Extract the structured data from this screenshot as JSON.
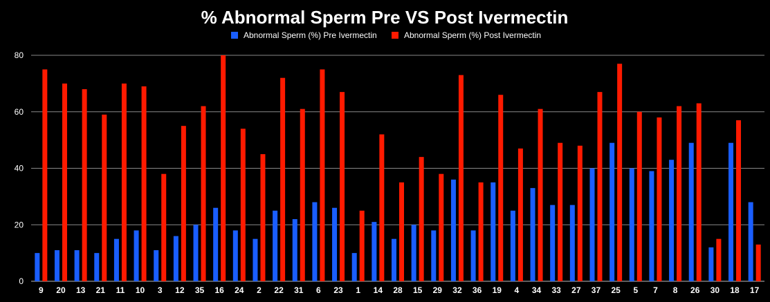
{
  "chart_data": {
    "type": "bar",
    "title": "% Abnormal Sperm Pre VS Post Ivermectin",
    "xlabel": "",
    "ylabel": "",
    "ylim": [
      0,
      80
    ],
    "yticks": [
      0,
      20,
      40,
      60,
      80
    ],
    "grid": true,
    "legend_position": "top",
    "categories": [
      "9",
      "20",
      "13",
      "21",
      "11",
      "10",
      "3",
      "12",
      "35",
      "16",
      "24",
      "2",
      "22",
      "31",
      "6",
      "23",
      "1",
      "14",
      "28",
      "15",
      "29",
      "32",
      "36",
      "19",
      "4",
      "34",
      "33",
      "27",
      "37",
      "25",
      "5",
      "7",
      "8",
      "26",
      "30",
      "18",
      "17"
    ],
    "series": [
      {
        "name": "Abnormal Sperm (%) Pre Ivermectin",
        "color": "#1a5eff",
        "values": [
          10,
          11,
          11,
          10,
          15,
          18,
          11,
          16,
          20,
          26,
          18,
          15,
          25,
          22,
          28,
          26,
          10,
          21,
          15,
          20,
          18,
          36,
          18,
          35,
          25,
          33,
          27,
          27,
          40,
          49,
          40,
          39,
          43,
          49,
          12,
          49,
          28
        ]
      },
      {
        "name": "Abnormal Sperm (%) Post Ivermectin",
        "color": "#ff1a00",
        "values": [
          75,
          70,
          68,
          59,
          70,
          69,
          38,
          55,
          62,
          80,
          54,
          45,
          72,
          61,
          75,
          67,
          25,
          52,
          35,
          44,
          38,
          73,
          35,
          66,
          47,
          61,
          49,
          48,
          67,
          77,
          60,
          58,
          62,
          63,
          15,
          57,
          13
        ]
      }
    ]
  }
}
